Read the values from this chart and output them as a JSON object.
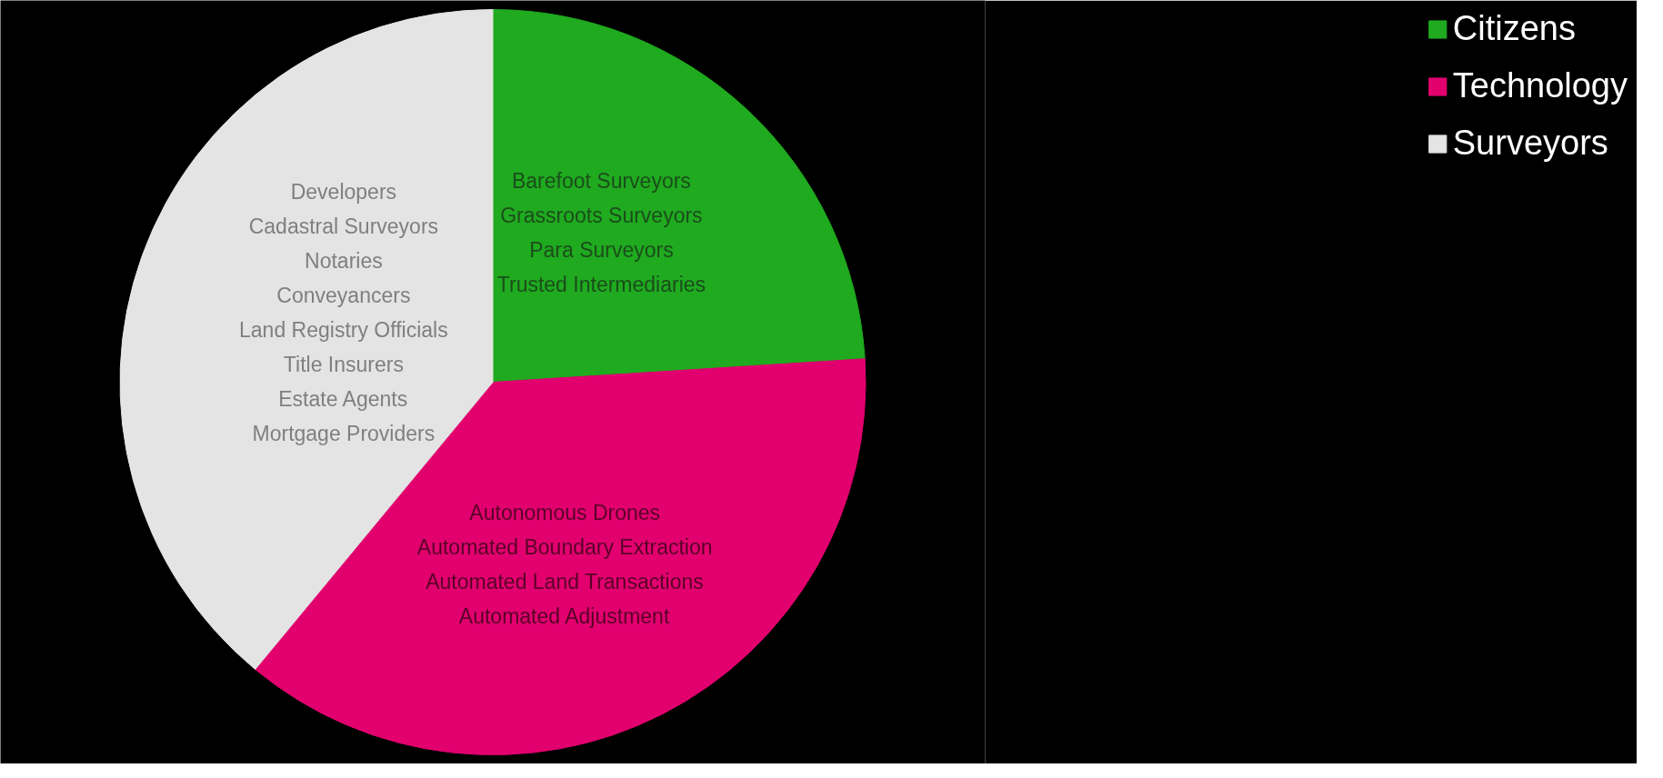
{
  "chart_data": {
    "type": "pie",
    "categories": [
      "Citizens",
      "Technology",
      "Surveyors"
    ],
    "values": [
      24,
      37,
      39
    ],
    "colors": [
      "#1faa1f",
      "#e2006f",
      "#e4e4e4"
    ],
    "legend": "right",
    "annotations": [
      "Barefoot Surveyors",
      "Grassroots Surveyors",
      "Para Surveyors",
      "Trusted Intermediaries",
      "Autonomous Drones",
      "Automated Boundary Extraction",
      "Automated Land Transactions",
      "Automated Adjustment",
      "Developers",
      "Cadastral Surveyors",
      "Notaries",
      "Conveyancers",
      "Land Registry Officials",
      "Title Insurers",
      "Estate Agents",
      "Mortgage Providers"
    ]
  }
}
